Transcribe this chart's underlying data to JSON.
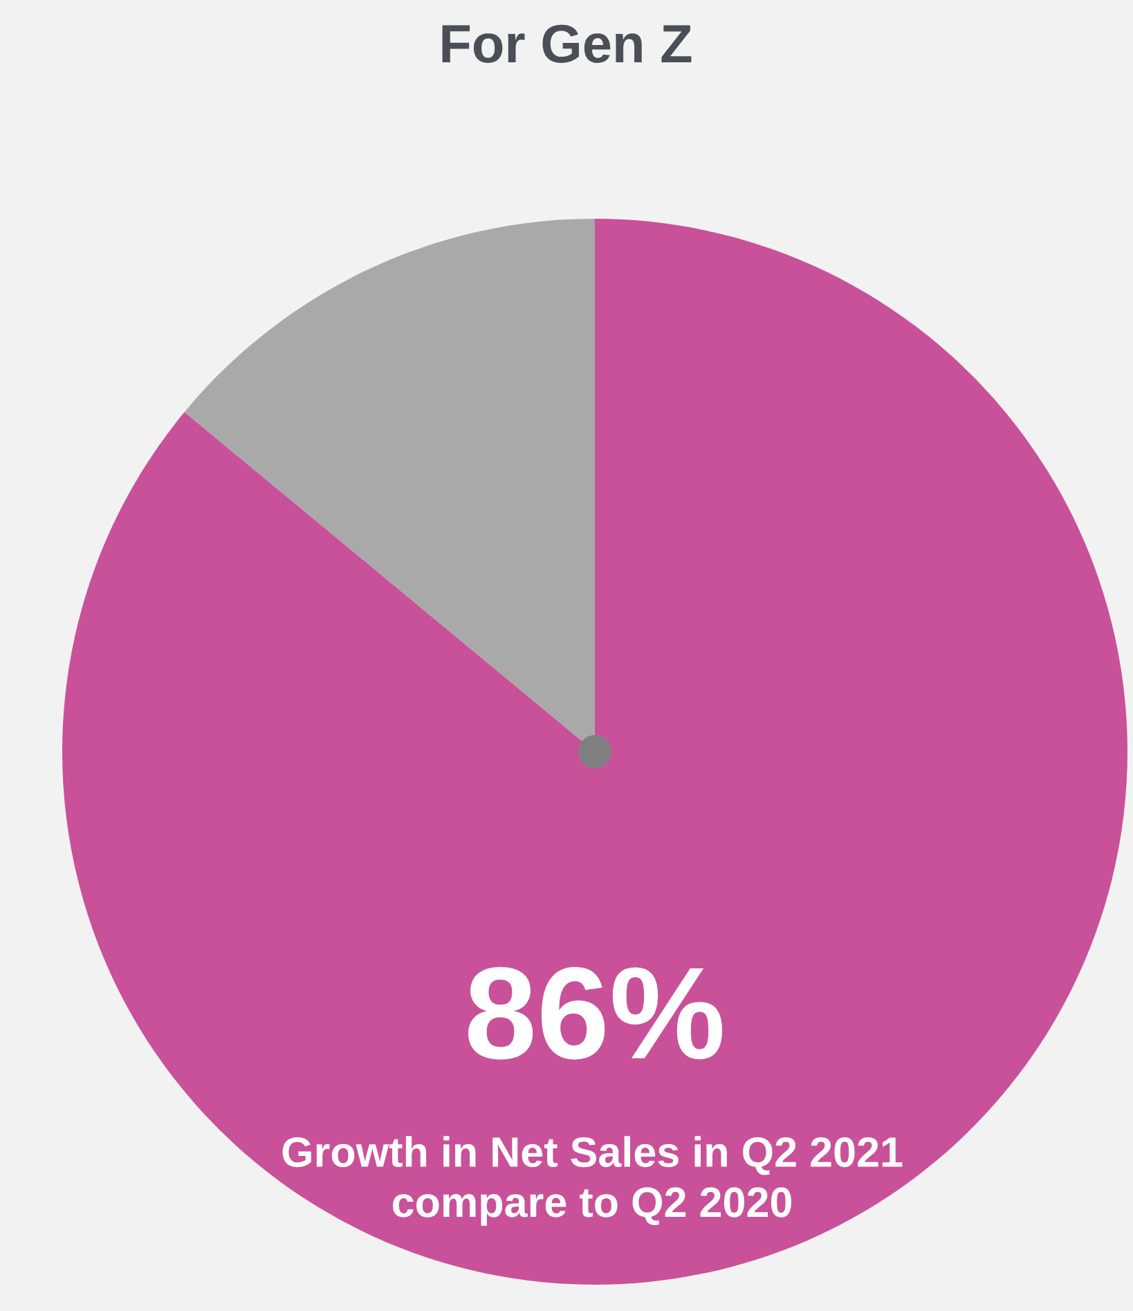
{
  "chart_data": {
    "type": "pie",
    "title": "For Gen Z",
    "categories": [
      null,
      null
    ],
    "values": [
      86,
      14
    ],
    "colors": [
      "#c8519a",
      "#a9a9a9"
    ],
    "value_labels": [
      "86%",
      null
    ],
    "annotations": [
      "Growth in Net Sales in Q2 2021\ncompare to Q2 2020"
    ]
  }
}
